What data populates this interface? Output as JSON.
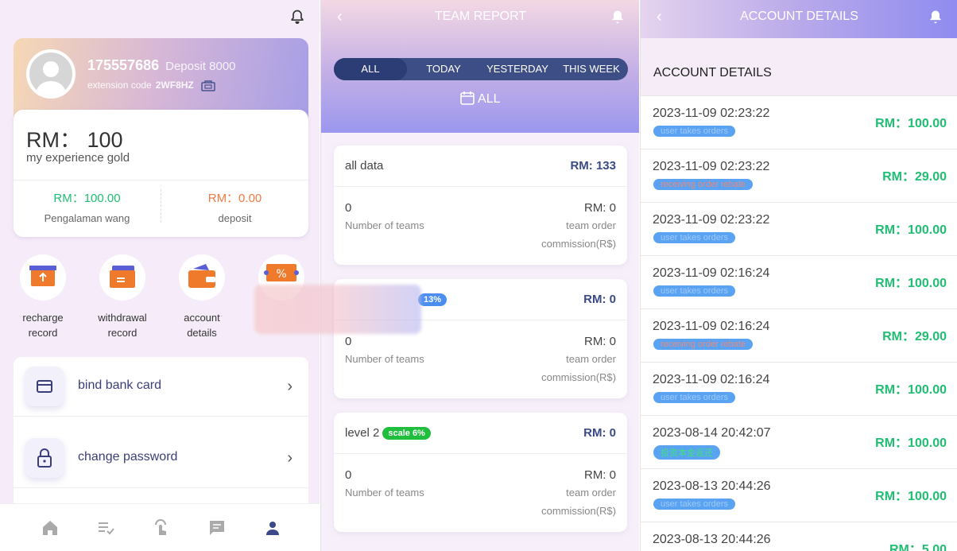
{
  "profile": {
    "user_id": "175557686",
    "deposit_label": "Deposit 8000",
    "extension_label": "extension code",
    "extension_code": "2WF8HZ",
    "rm_label": "RM：",
    "rm_value": "100",
    "rm_caption": "my experience gold",
    "left_value": "RM：100.00",
    "left_label": "Pengalaman wang",
    "right_value": "RM：0.00",
    "right_label": "deposit"
  },
  "shortcuts": [
    {
      "label": "recharge record",
      "icon": "recharge-icon"
    },
    {
      "label": "withdrawal record",
      "icon": "withdrawal-icon"
    },
    {
      "label": "account details",
      "icon": "wallet-icon"
    },
    {
      "label": "",
      "icon": "coupon-icon"
    }
  ],
  "menu": [
    {
      "label": "bind bank card",
      "icon": "card-icon"
    },
    {
      "label": "change password",
      "icon": "lock-icon"
    }
  ],
  "team": {
    "title": "TEAM REPORT",
    "tabs": [
      "ALL",
      "TODAY",
      "YESTERDAY",
      "THIS WEEK"
    ],
    "date_filter": "ALL",
    "cards": [
      {
        "title": "all data",
        "badge": "",
        "amount": "RM:  133",
        "teams": "0",
        "teams_label": "Number of teams",
        "commission": "RM:  0",
        "commission_label1": "team order",
        "commission_label2": "commission(R$)"
      },
      {
        "title": "",
        "badge": "13%",
        "amount": "RM:  0",
        "teams": "0",
        "teams_label": "Number of teams",
        "commission": "RM:  0",
        "commission_label1": "team order",
        "commission_label2": "commission(R$)"
      },
      {
        "title": "level 2",
        "badge": "scale 6%",
        "amount": "RM:  0",
        "teams": "0",
        "teams_label": "Number of teams",
        "commission": "RM:  0",
        "commission_label1": "team order",
        "commission_label2": "commission(R$)"
      }
    ]
  },
  "account": {
    "title": "ACCOUNT DETAILS",
    "subtitle": "ACCOUNT DETAILS",
    "transactions": [
      {
        "date": "2023-11-09 02:23:22",
        "tag": "user takes orders",
        "amount": "RM：100.00",
        "tag_color": "#5aa3f3",
        "tag_text": "#9fc9f7"
      },
      {
        "date": "2023-11-09 02:23:22",
        "tag": "receiving order rebate",
        "amount": "RM：29.00",
        "tag_color": "#5aa3f3",
        "tag_text": "#e98a7a"
      },
      {
        "date": "2023-11-09 02:23:22",
        "tag": "user takes orders",
        "amount": "RM：100.00",
        "tag_color": "#5aa3f3",
        "tag_text": "#9fc9f7"
      },
      {
        "date": "2023-11-09 02:16:24",
        "tag": "user takes orders",
        "amount": "RM：100.00",
        "tag_color": "#5aa3f3",
        "tag_text": "#9fc9f7"
      },
      {
        "date": "2023-11-09 02:16:24",
        "tag": "receiving order rebate",
        "amount": "RM：29.00",
        "tag_color": "#5aa3f3",
        "tag_text": "#e98a7a"
      },
      {
        "date": "2023-11-09 02:16:24",
        "tag": "user takes orders",
        "amount": "RM：100.00",
        "tag_color": "#5aa3f3",
        "tag_text": "#9fc9f7"
      },
      {
        "date": "2023-08-14 20:42:07",
        "tag": "投资本金返还",
        "amount": "RM：100.00",
        "tag_color": "#5aa3f3",
        "tag_text": "#3ee07c"
      },
      {
        "date": "2023-08-13 20:44:26",
        "tag": "user takes orders",
        "amount": "RM：100.00",
        "tag_color": "#5aa3f3",
        "tag_text": "#9fc9f7"
      },
      {
        "date": "2023-08-13 20:44:26",
        "tag": "",
        "amount": "RM：5.00",
        "tag_color": "#5aa3f3",
        "tag_text": "#9fc9f7"
      }
    ]
  },
  "colors": {
    "green": "#1fbe72",
    "orange": "#f07a43",
    "navy": "#3d4e86",
    "badge_blue": "#4b8ef0",
    "badge_green": "#1fbe3c"
  }
}
